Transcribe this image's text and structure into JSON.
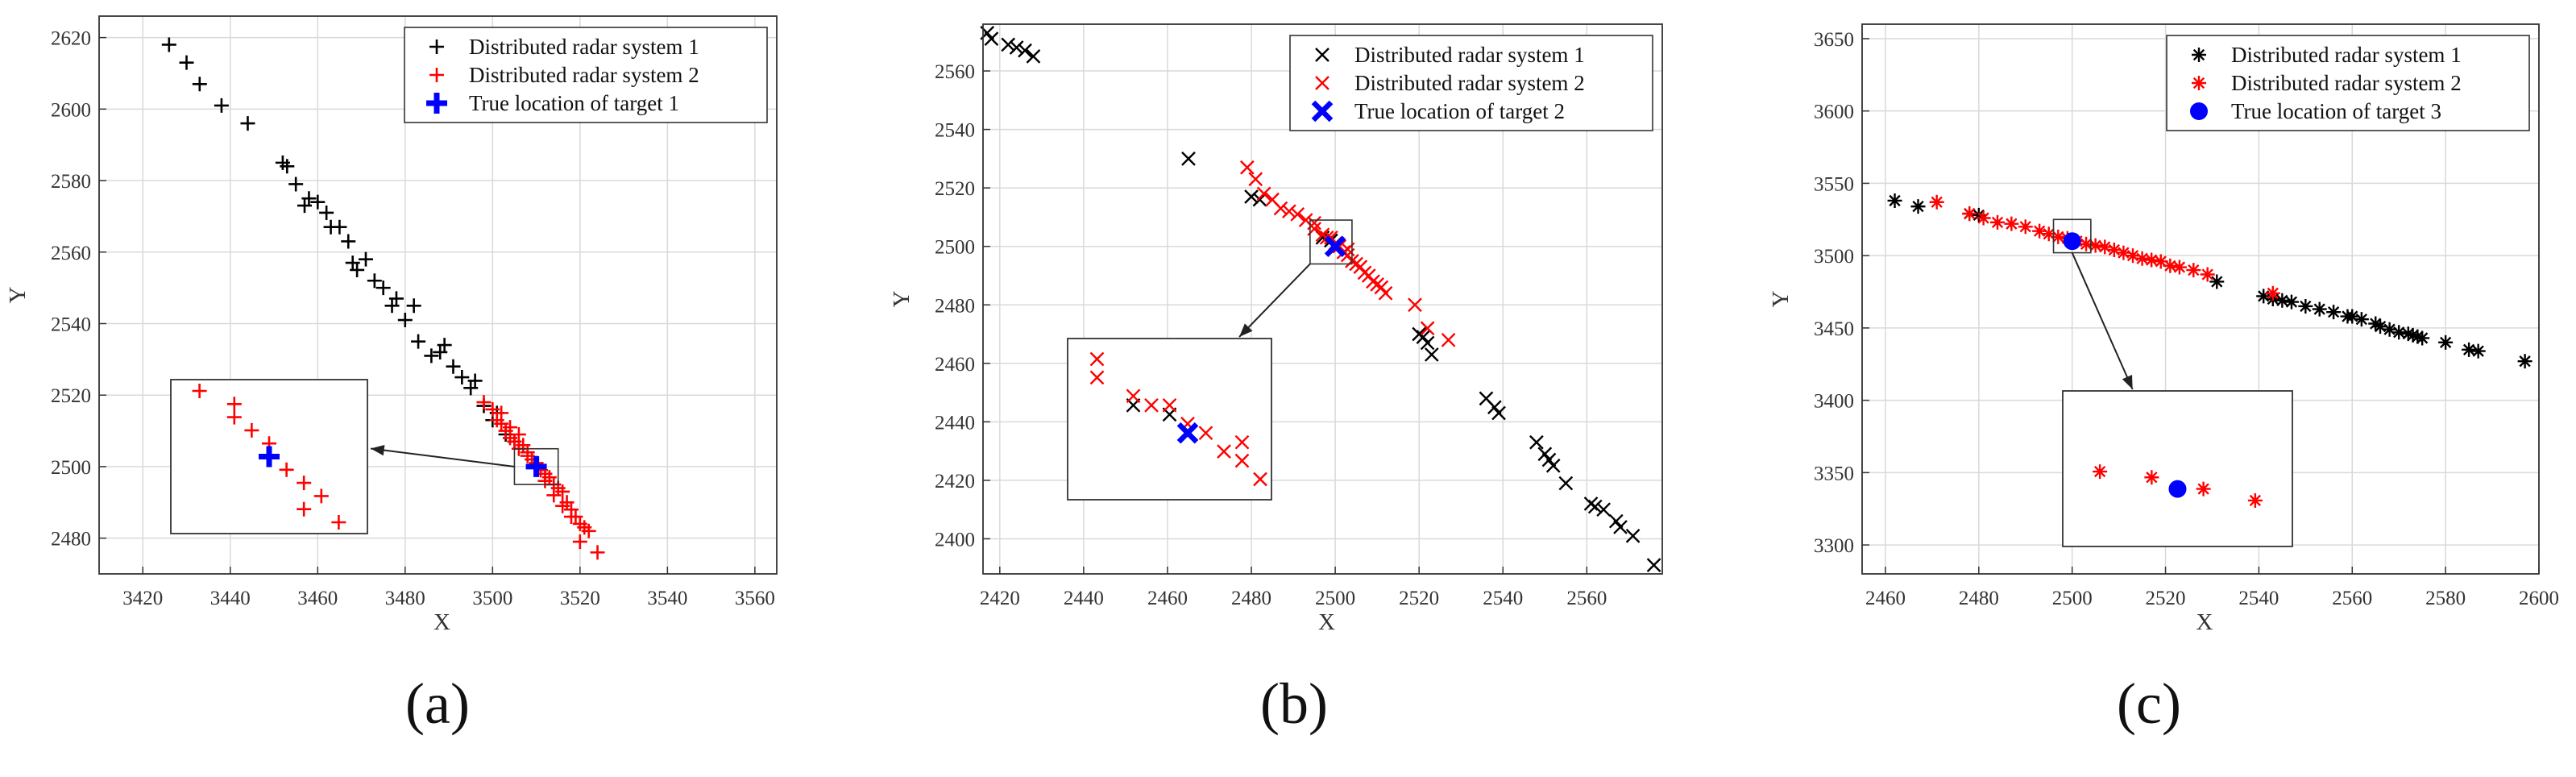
{
  "panel_labels": [
    "(a)",
    "(b)",
    "(c)"
  ],
  "colors": {
    "system1": "#000000",
    "system2": "#ff0000",
    "truth": "#0000ff",
    "grid": "#d9d9d9",
    "axis": "#333333"
  },
  "chart_data": [
    {
      "type": "scatter",
      "xlabel": "X",
      "ylabel": "Y",
      "xlim": [
        3410,
        3565
      ],
      "ylim": [
        2470,
        2626
      ],
      "xticks": [
        3420,
        3440,
        3460,
        3480,
        3500,
        3520,
        3540,
        3560
      ],
      "yticks": [
        2480,
        2500,
        2520,
        2540,
        2560,
        2580,
        2600,
        2620
      ],
      "grid": true,
      "legend": "top-right",
      "series": [
        {
          "name": "Distributed radar system 1",
          "marker": "plus",
          "color": "#000000",
          "x": [
            3426,
            3430,
            3433,
            3438,
            3444,
            3452,
            3453,
            3455,
            3457,
            3458,
            3460,
            3462,
            3463,
            3465,
            3467,
            3468,
            3469,
            3471,
            3473,
            3475,
            3477,
            3478,
            3480,
            3482,
            3483,
            3486,
            3488,
            3489,
            3491,
            3493,
            3495,
            3496,
            3498,
            3500,
            3501,
            3503,
            3505
          ],
          "y": [
            2618,
            2613,
            2607,
            2601,
            2596,
            2585,
            2584,
            2579,
            2573,
            2575,
            2574,
            2571,
            2567,
            2567,
            2563,
            2557,
            2555,
            2558,
            2552,
            2550,
            2545,
            2547,
            2541,
            2545,
            2535,
            2531,
            2532,
            2534,
            2528,
            2525,
            2522,
            2524,
            2517,
            2513,
            2515,
            2509,
            2507
          ]
        },
        {
          "name": "Distributed radar system 2",
          "marker": "plus",
          "color": "#ff0000",
          "x": [
            3498,
            3500,
            3501,
            3502,
            3503,
            3504,
            3505,
            3506,
            3507,
            3508,
            3509,
            3510,
            3511,
            3512,
            3513,
            3514,
            3515,
            3516,
            3517,
            3518,
            3519,
            3520,
            3521,
            3522,
            3524,
            3502,
            3504,
            3506,
            3508,
            3510,
            3512,
            3514,
            3516,
            3518,
            3520
          ],
          "y": [
            2518,
            2516,
            2513,
            2512,
            2510,
            2508,
            2507,
            2505,
            2506,
            2503,
            2502,
            2501,
            2499,
            2498,
            2497,
            2495,
            2494,
            2493,
            2490,
            2488,
            2486,
            2484,
            2483,
            2482,
            2476,
            2515,
            2511,
            2509,
            2504,
            2500,
            2496,
            2492,
            2489,
            2486,
            2479
          ]
        },
        {
          "name": "True location of target 1",
          "marker": "bigplus",
          "color": "#0000ff",
          "x": [
            3510
          ],
          "y": [
            2500
          ]
        }
      ],
      "zoom": {
        "x": [
          3505,
          3515
        ],
        "y": [
          2495,
          2505
        ]
      }
    },
    {
      "type": "scatter",
      "xlabel": "X",
      "ylabel": "Y",
      "xlim": [
        2416,
        2578
      ],
      "ylim": [
        2388,
        2576
      ],
      "xticks": [
        2420,
        2440,
        2460,
        2480,
        2500,
        2520,
        2540,
        2560
      ],
      "yticks": [
        2400,
        2420,
        2440,
        2460,
        2480,
        2500,
        2520,
        2540,
        2560
      ],
      "grid": true,
      "legend": "top-right",
      "series": [
        {
          "name": "Distributed radar system 1",
          "marker": "cross",
          "color": "#000000",
          "x": [
            2417,
            2418,
            2422,
            2424,
            2426,
            2428,
            2465,
            2480,
            2482,
            2497,
            2499,
            2520,
            2521,
            2522,
            2523,
            2536,
            2538,
            2539,
            2548,
            2550,
            2551,
            2552,
            2555,
            2561,
            2562,
            2564,
            2567,
            2568,
            2571,
            2576
          ],
          "y": [
            2573,
            2571,
            2569,
            2568,
            2567,
            2565,
            2530,
            2517,
            2516,
            2503,
            2502,
            2470,
            2469,
            2467,
            2463,
            2448,
            2445,
            2443,
            2433,
            2429,
            2427,
            2425,
            2419,
            2412,
            2411,
            2410,
            2406,
            2404,
            2401,
            2391
          ]
        },
        {
          "name": "Distributed radar system 2",
          "marker": "cross",
          "color": "#ff0000",
          "x": [
            2479,
            2481,
            2483,
            2485,
            2487,
            2489,
            2491,
            2493,
            2495,
            2497,
            2498,
            2500,
            2501,
            2502,
            2503,
            2504,
            2505,
            2506,
            2507,
            2508,
            2509,
            2510,
            2511,
            2512,
            2519,
            2522,
            2527,
            2495,
            2499,
            2503
          ],
          "y": [
            2527,
            2523,
            2518,
            2516,
            2513,
            2512,
            2511,
            2509,
            2506,
            2504,
            2503,
            2501,
            2500,
            2498,
            2497,
            2495,
            2494,
            2493,
            2491,
            2490,
            2488,
            2487,
            2486,
            2484,
            2480,
            2472,
            2468,
            2508,
            2503,
            2499
          ]
        },
        {
          "name": "True location of target 2",
          "marker": "bigcross",
          "color": "#0000ff",
          "x": [
            2500
          ],
          "y": [
            2500
          ]
        }
      ],
      "zoom": {
        "x": [
          2494,
          2504
        ],
        "y": [
          2494,
          2509
        ]
      }
    },
    {
      "type": "scatter",
      "xlabel": "X",
      "ylabel": "Y",
      "xlim": [
        2455,
        2600
      ],
      "ylim": [
        3280,
        3660
      ],
      "xticks": [
        2460,
        2480,
        2500,
        2520,
        2540,
        2560,
        2580,
        2600
      ],
      "yticks": [
        3300,
        3350,
        3400,
        3450,
        3500,
        3550,
        3600,
        3650
      ],
      "grid": true,
      "legend": "top-right",
      "series": [
        {
          "name": "Distributed radar system 1",
          "marker": "star",
          "color": "#000000",
          "x": [
            2462,
            2467,
            2478,
            2480,
            2531,
            2541,
            2543,
            2545,
            2547,
            2550,
            2553,
            2556,
            2559,
            2560,
            2562,
            2565,
            2566,
            2568,
            2570,
            2572,
            2573,
            2574,
            2575,
            2580,
            2585,
            2587,
            2597
          ],
          "y": [
            3538,
            3534,
            3529,
            3528,
            3482,
            3472,
            3470,
            3469,
            3468,
            3465,
            3463,
            3461,
            3458,
            3458,
            3456,
            3453,
            3451,
            3449,
            3447,
            3446,
            3445,
            3444,
            3443,
            3440,
            3435,
            3434,
            3427
          ]
        },
        {
          "name": "Distributed radar system 2",
          "marker": "star",
          "color": "#ff0000",
          "x": [
            2471,
            2478,
            2481,
            2484,
            2487,
            2490,
            2493,
            2495,
            2497,
            2499,
            2501,
            2503,
            2505,
            2507,
            2509,
            2511,
            2513,
            2515,
            2517,
            2519,
            2521,
            2523,
            2526,
            2529,
            2543
          ],
          "y": [
            3537,
            3529,
            3526,
            3523,
            3522,
            3520,
            3517,
            3515,
            3513,
            3512,
            3510,
            3508,
            3507,
            3506,
            3504,
            3502,
            3500,
            3498,
            3497,
            3496,
            3493,
            3492,
            3490,
            3487,
            3474
          ]
        },
        {
          "name": "True location of target 3",
          "marker": "dot",
          "color": "#0000ff",
          "x": [
            2500
          ],
          "y": [
            3510
          ]
        }
      ],
      "zoom": {
        "x": [
          2496,
          2504
        ],
        "y": [
          3502,
          3525
        ]
      }
    }
  ]
}
